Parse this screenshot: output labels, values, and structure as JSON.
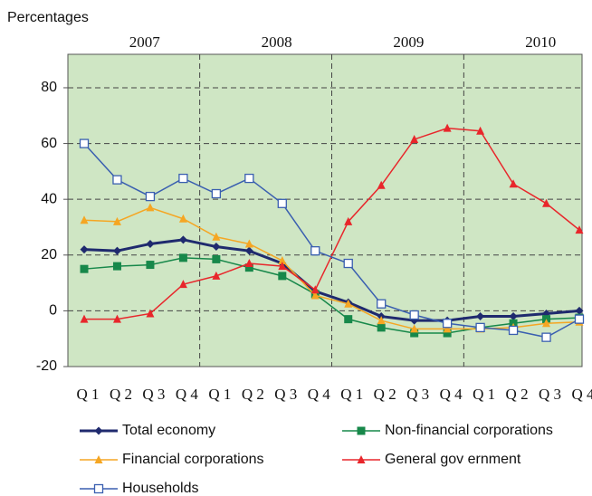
{
  "chart_data": {
    "type": "line",
    "y_axis_label": "Percentages",
    "years": [
      "2007",
      "2008",
      "2009",
      "2010"
    ],
    "categories": [
      "Q 1",
      "Q 2",
      "Q 3",
      "Q 4",
      "Q 1",
      "Q 2",
      "Q 3",
      "Q 4",
      "Q 1",
      "Q 2",
      "Q 3",
      "Q 4",
      "Q 1",
      "Q 2",
      "Q 3",
      "Q 4"
    ],
    "ylim": [
      -20,
      92
    ],
    "yticks": [
      -20,
      0,
      20,
      40,
      60,
      80
    ],
    "grid": true,
    "background": "#cfe6c4",
    "series": [
      {
        "name": "Total economy",
        "color": "#1f2a6e",
        "marker": "diamond",
        "values": [
          22,
          21.5,
          24,
          25.5,
          23,
          21.5,
          17,
          7,
          3,
          -2,
          -3.5,
          -3.5,
          -2,
          -2,
          -1,
          0
        ]
      },
      {
        "name": "Non-financial corporations",
        "color": "#17884a",
        "marker": "square",
        "values": [
          15,
          16,
          16.5,
          19,
          18.5,
          15.5,
          12.5,
          6,
          -3,
          -6,
          -8,
          -8,
          -6,
          -4.5,
          -3,
          -2.5
        ]
      },
      {
        "name": "Financial corporations",
        "color": "#f5a623",
        "marker": "triangle",
        "values": [
          32.5,
          32,
          37,
          33,
          26.5,
          24,
          18,
          5.5,
          2.5,
          -3.5,
          -6.5,
          -6.5,
          -6.5,
          -6,
          -4.5,
          -4
        ]
      },
      {
        "name": "General gov ernment",
        "color": "#e8262b",
        "marker": "triangle",
        "values": [
          -3,
          -3,
          -1,
          9.5,
          12.5,
          17,
          16,
          7.5,
          32,
          45,
          61.5,
          65.5,
          64.5,
          45.5,
          38.5,
          29
        ]
      },
      {
        "name": "Households",
        "color": "#3a5fb0",
        "marker": "open-square",
        "values": [
          60,
          47,
          41,
          47.5,
          42,
          47.5,
          38.5,
          21.5,
          17,
          2.5,
          -1.5,
          -4.5,
          -6,
          -7,
          -9.5,
          -3
        ]
      }
    ]
  }
}
